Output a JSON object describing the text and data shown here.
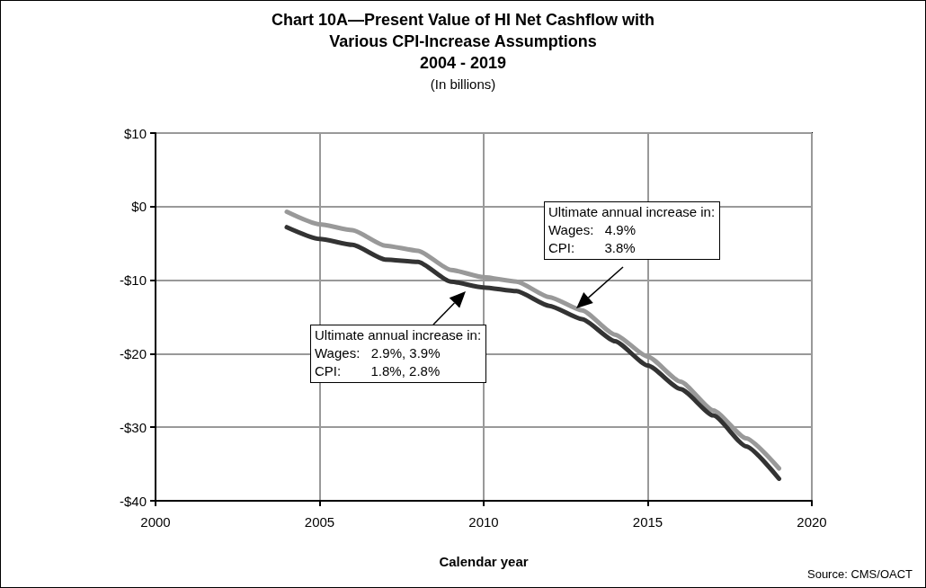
{
  "chart_data": {
    "type": "line",
    "title": "Chart 10A—Present Value of HI Net Cashflow with\nVarious CPI-Increase Assumptions\n2004 - 2019",
    "subtitle": "(In billions)",
    "xlabel": "Calendar year",
    "x": [
      2004,
      2005,
      2006,
      2007,
      2008,
      2009,
      2010,
      2011,
      2012,
      2013,
      2014,
      2015,
      2016,
      2017,
      2018,
      2019
    ],
    "series": [
      {
        "color": "#999999",
        "values": [
          -0.7,
          -2.4,
          -3.2,
          -5.3,
          -6.0,
          -8.6,
          -9.6,
          -10.2,
          -12.3,
          -14.1,
          -17.4,
          -20.4,
          -23.8,
          -27.7,
          -31.5,
          -35.6
        ]
      },
      {
        "color": "#333333",
        "values": [
          -2.8,
          -4.4,
          -5.2,
          -7.2,
          -7.5,
          -10.2,
          -11.0,
          -11.5,
          -13.5,
          -15.3,
          -18.3,
          -21.6,
          -24.8,
          -28.4,
          -32.6,
          -37.0
        ]
      }
    ],
    "xlim": [
      2000,
      2020
    ],
    "xticks": [
      2000,
      2005,
      2010,
      2015,
      2020
    ],
    "ylim": [
      -40,
      10
    ],
    "yticks": [
      {
        "value": -40,
        "label": "-$40"
      },
      {
        "value": -30,
        "label": "-$30"
      },
      {
        "value": -20,
        "label": "-$20"
      },
      {
        "value": -10,
        "label": "-$10"
      },
      {
        "value": 0,
        "label": "$0"
      },
      {
        "value": 10,
        "label": "$10"
      }
    ],
    "grid": true,
    "marker": "none",
    "line_style": "solid",
    "annotations": [
      "Ultimate annual increase in:\nWages:   4.9%\nCPI:        3.8%",
      "Ultimate annual increase in:\nWages:   2.9%, 3.9%\nCPI:        1.8%, 2.8%",
      "Source: CMS/OACT"
    ]
  }
}
